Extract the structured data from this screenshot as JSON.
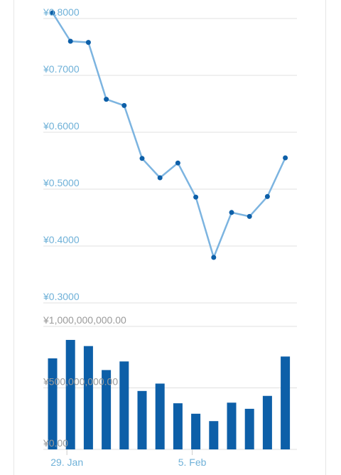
{
  "chart_data": [
    {
      "type": "line",
      "y_ticks": [
        "¥0.8000",
        "¥0.7000",
        "¥0.6000",
        "¥0.5000",
        "¥0.4000",
        "¥0.3000"
      ],
      "y_tick_values": [
        0.8,
        0.7,
        0.6,
        0.5,
        0.4,
        0.3
      ],
      "ylim": [
        0.3,
        0.8
      ],
      "grid": true,
      "series": [
        {
          "color": "#7cb4e0",
          "point_color": "#0d5fa8",
          "values": [
            0.81,
            0.76,
            0.758,
            0.658,
            0.647,
            0.554,
            0.52,
            0.546,
            0.486,
            0.38,
            0.459,
            0.452,
            0.487,
            0.555
          ]
        }
      ]
    },
    {
      "type": "bar",
      "y_ticks": [
        "¥1,000,000,000.00",
        "¥500,000,000.00",
        "¥0.00"
      ],
      "y_tick_values": [
        1000000000,
        500000000,
        0
      ],
      "ylim": [
        0,
        1000000000
      ],
      "grid": true,
      "x_ticks": [
        "29. Jan",
        "5. Feb"
      ],
      "x_tick_index": [
        0.8,
        7.8
      ],
      "series": [
        {
          "color": "#0d5fa8",
          "values": [
            740000000,
            890000000,
            840000000,
            645000000,
            715000000,
            475000000,
            535000000,
            375000000,
            290000000,
            230000000,
            380000000,
            330000000,
            435000000,
            755000000
          ]
        }
      ]
    }
  ]
}
